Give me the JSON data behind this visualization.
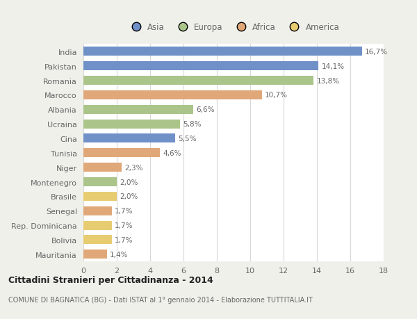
{
  "countries": [
    "India",
    "Pakistan",
    "Romania",
    "Marocco",
    "Albania",
    "Ucraina",
    "Cina",
    "Tunisia",
    "Niger",
    "Montenegro",
    "Brasile",
    "Senegal",
    "Rep. Dominicana",
    "Bolivia",
    "Mauritania"
  ],
  "values": [
    16.7,
    14.1,
    13.8,
    10.7,
    6.6,
    5.8,
    5.5,
    4.6,
    2.3,
    2.0,
    2.0,
    1.7,
    1.7,
    1.7,
    1.4
  ],
  "labels": [
    "16,7%",
    "14,1%",
    "13,8%",
    "10,7%",
    "6,6%",
    "5,8%",
    "5,5%",
    "4,6%",
    "2,3%",
    "2,0%",
    "2,0%",
    "1,7%",
    "1,7%",
    "1,7%",
    "1,4%"
  ],
  "colors": [
    "#7090c8",
    "#7090c8",
    "#aac48a",
    "#e0a878",
    "#aac48a",
    "#aac48a",
    "#7090c8",
    "#e0a878",
    "#e0a878",
    "#aac48a",
    "#e8cc72",
    "#e0a878",
    "#e8cc72",
    "#e8cc72",
    "#e0a878"
  ],
  "legend_labels": [
    "Asia",
    "Europa",
    "Africa",
    "America"
  ],
  "legend_colors": [
    "#7090c8",
    "#aac48a",
    "#e0a878",
    "#e8cc72"
  ],
  "title_main": "Cittadini Stranieri per Cittadinanza - 2014",
  "title_sub": "COMUNE DI BAGNATICA (BG) - Dati ISTAT al 1° gennaio 2014 - Elaborazione TUTTITALIA.IT",
  "xlim": [
    0,
    18
  ],
  "xticks": [
    0,
    2,
    4,
    6,
    8,
    10,
    12,
    14,
    16,
    18
  ],
  "bg_color": "#f0f0eb",
  "plot_bg_color": "#ffffff",
  "label_color": "#666666",
  "grid_color": "#d8d8d8"
}
